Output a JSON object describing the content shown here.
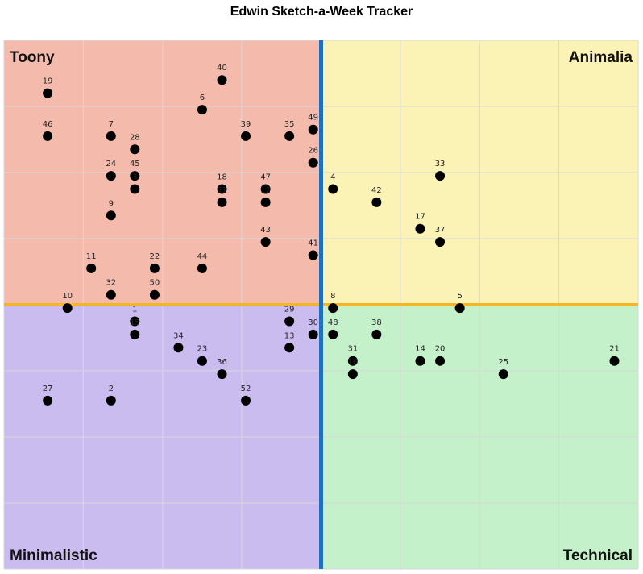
{
  "chart_data": {
    "type": "scatter",
    "title": "Edwin Sketch-a-Week Tracker",
    "xlabel": "",
    "ylabel": "",
    "xlim": [
      -4,
      4
    ],
    "ylim": [
      -4,
      4
    ],
    "grid": true,
    "axis_colors": {
      "vertical_divider": "#1f6fbf",
      "horizontal_divider": "#f4b624"
    },
    "quadrants": [
      {
        "name": "Toony",
        "position": "top-left",
        "color": "#f4bbad"
      },
      {
        "name": "Animalia",
        "position": "top-right",
        "color": "#fbf3b5"
      },
      {
        "name": "Minimalistic",
        "position": "bottom-left",
        "color": "#cbbcef"
      },
      {
        "name": "Technical",
        "position": "bottom-right",
        "color": "#c4f1c9"
      }
    ],
    "point_color": "#000000",
    "points": [
      {
        "label": "19",
        "x": -3.45,
        "y": 3.2
      },
      {
        "label": "40",
        "x": -1.25,
        "y": 3.4
      },
      {
        "label": "6",
        "x": -1.5,
        "y": 2.95
      },
      {
        "label": "49",
        "x": -0.1,
        "y": 2.65
      },
      {
        "label": "46",
        "x": -3.45,
        "y": 2.55
      },
      {
        "label": "7",
        "x": -2.65,
        "y": 2.55
      },
      {
        "label": "39",
        "x": -0.95,
        "y": 2.55
      },
      {
        "label": "35",
        "x": -0.4,
        "y": 2.55
      },
      {
        "label": "28",
        "x": -2.35,
        "y": 2.35
      },
      {
        "label": "26",
        "x": -0.1,
        "y": 2.15
      },
      {
        "label": "24",
        "x": -2.65,
        "y": 1.95
      },
      {
        "label": "45",
        "x": -2.35,
        "y": 1.95
      },
      {
        "label": "3",
        "x": -2.35,
        "y": 1.75
      },
      {
        "label": "18",
        "x": -1.25,
        "y": 1.75
      },
      {
        "label": "47",
        "x": -0.7,
        "y": 1.75
      },
      {
        "label": "51",
        "x": -1.25,
        "y": 1.55
      },
      {
        "label": "12",
        "x": -0.7,
        "y": 1.55
      },
      {
        "label": "9",
        "x": -2.65,
        "y": 1.35
      },
      {
        "label": "43",
        "x": -0.7,
        "y": 0.95
      },
      {
        "label": "4",
        "x": 0.15,
        "y": 1.75
      },
      {
        "label": "33",
        "x": 1.5,
        "y": 1.95
      },
      {
        "label": "42",
        "x": 0.7,
        "y": 1.55
      },
      {
        "label": "17",
        "x": 1.25,
        "y": 1.15
      },
      {
        "label": "37",
        "x": 1.5,
        "y": 0.95
      },
      {
        "label": "41",
        "x": -0.1,
        "y": 0.75
      },
      {
        "label": "11",
        "x": -2.9,
        "y": 0.55
      },
      {
        "label": "22",
        "x": -2.1,
        "y": 0.55
      },
      {
        "label": "44",
        "x": -1.5,
        "y": 0.55
      },
      {
        "label": "32",
        "x": -2.65,
        "y": 0.15
      },
      {
        "label": "50",
        "x": -2.1,
        "y": 0.15
      },
      {
        "label": "10",
        "x": -3.2,
        "y": -0.05
      },
      {
        "label": "1",
        "x": -2.35,
        "y": -0.25
      },
      {
        "label": "15",
        "x": -2.35,
        "y": -0.45
      },
      {
        "label": "29",
        "x": -0.4,
        "y": -0.25
      },
      {
        "label": "30",
        "x": -0.1,
        "y": -0.45
      },
      {
        "label": "34",
        "x": -1.8,
        "y": -0.65
      },
      {
        "label": "13",
        "x": -0.4,
        "y": -0.65
      },
      {
        "label": "23",
        "x": -1.5,
        "y": -0.85
      },
      {
        "label": "36",
        "x": -1.25,
        "y": -1.05
      },
      {
        "label": "27",
        "x": -3.45,
        "y": -1.45
      },
      {
        "label": "2",
        "x": -2.65,
        "y": -1.45
      },
      {
        "label": "52",
        "x": -0.95,
        "y": -1.45
      },
      {
        "label": "8",
        "x": 0.15,
        "y": -0.05
      },
      {
        "label": "5",
        "x": 1.75,
        "y": -0.05
      },
      {
        "label": "48",
        "x": 0.15,
        "y": -0.45
      },
      {
        "label": "38",
        "x": 0.7,
        "y": -0.45
      },
      {
        "label": "31",
        "x": 0.4,
        "y": -0.85
      },
      {
        "label": "16",
        "x": 0.4,
        "y": -1.05
      },
      {
        "label": "14",
        "x": 1.25,
        "y": -0.85
      },
      {
        "label": "20",
        "x": 1.5,
        "y": -0.85
      },
      {
        "label": "25",
        "x": 2.3,
        "y": -1.05
      },
      {
        "label": "21",
        "x": 3.7,
        "y": -0.85
      }
    ]
  }
}
